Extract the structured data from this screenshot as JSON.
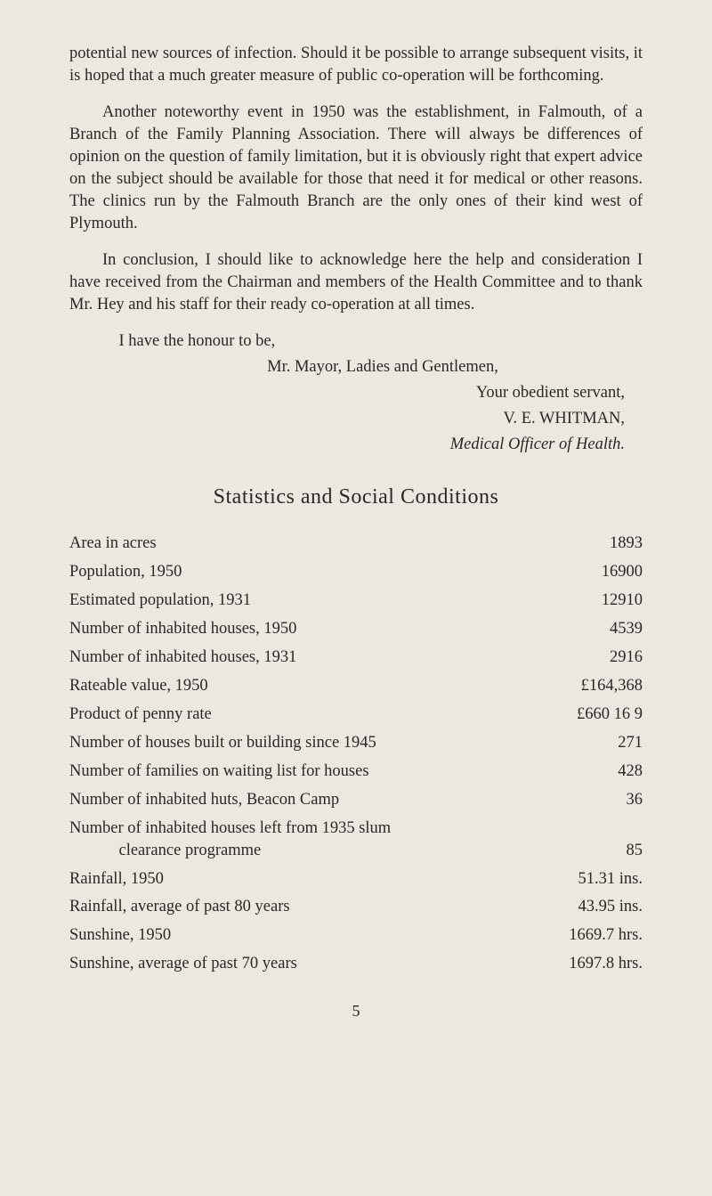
{
  "paragraphs": {
    "p1": "potential new sources of infection. Should it be possible to arrange subsequent visits, it is hoped that a much greater measure of public co-operation will be forthcoming.",
    "p2": "Another noteworthy event in 1950 was the establishment, in Falmouth, of a Branch of the Family Planning Association. There will always be differences of opinion on the question of family limitation, but it is obviously right that expert advice on the subject should be available for those that need it for medical or other reasons. The clinics run by the Falmouth Branch are the only ones of their kind west of Plymouth.",
    "p3": "In conclusion, I should like to acknowledge here the help and consideration I have received from the Chairman and members of the Health Committee and to thank Mr. Hey and his staff for their ready co-operation at all times."
  },
  "closing": {
    "honour": "I have the honour to be,",
    "mayor": "Mr. Mayor, Ladies and Gentlemen,",
    "servant": "Your obedient servant,",
    "name": "V. E. WHITMAN,",
    "title": "Medical Officer of Health."
  },
  "section_heading": "Statistics and Social Conditions",
  "stats": [
    {
      "label": "Area in acres",
      "value": "1893"
    },
    {
      "label": "Population, 1950",
      "value": "16900"
    },
    {
      "label": "Estimated population, 1931",
      "value": "12910"
    },
    {
      "label": "Number of inhabited houses, 1950",
      "value": "4539"
    },
    {
      "label": "Number of inhabited houses, 1931",
      "value": "2916"
    },
    {
      "label": "Rateable value, 1950",
      "value": "£164,368"
    },
    {
      "label": "Product of penny rate",
      "value": "£660 16 9"
    },
    {
      "label": "Number of houses built or building since 1945",
      "value": "271"
    },
    {
      "label": "Number of families on waiting list for houses",
      "value": "428"
    },
    {
      "label": "Number of inhabited huts, Beacon Camp",
      "value": "36"
    },
    {
      "label": "Number of inhabited houses left from 1935 slum",
      "label2": "clearance programme",
      "value": "85"
    },
    {
      "label": "Rainfall, 1950",
      "value": "51.31 ins."
    },
    {
      "label": "Rainfall, average of past 80 years",
      "value": "43.95 ins."
    },
    {
      "label": "Sunshine, 1950",
      "value": "1669.7 hrs."
    },
    {
      "label": "Sunshine, average of past 70 years",
      "value": "1697.8 hrs."
    }
  ],
  "page_number": "5",
  "colors": {
    "background": "#ece8e0",
    "text": "#2a2826"
  },
  "typography": {
    "body_fontsize": 18.5,
    "heading_fontsize": 24,
    "font_family": "Georgia, Times New Roman, serif"
  }
}
